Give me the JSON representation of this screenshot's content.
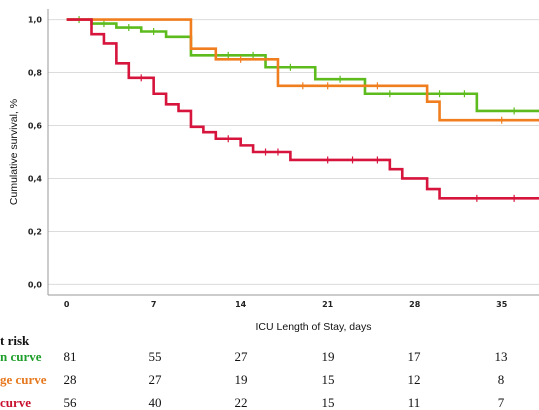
{
  "chart_data": {
    "type": "line",
    "xlabel": "ICU Length of Stay, days",
    "ylabel": "Cumulative survival, %",
    "xlim": [
      -1.5,
      38
    ],
    "ylim": [
      -0.04,
      1.04
    ],
    "x_ticks": [
      "0",
      "7",
      "14",
      "21",
      "28",
      "35"
    ],
    "y_ticks": [
      "0,0",
      "0,2",
      "0,4",
      "0,6",
      "0,8",
      "1,0"
    ],
    "grid": true,
    "series": [
      {
        "color": "#5dbb1e",
        "steps": [
          [
            0,
            1.0
          ],
          [
            2,
            0.985
          ],
          [
            4,
            0.97
          ],
          [
            6,
            0.955
          ],
          [
            8,
            0.935
          ],
          [
            10,
            0.865
          ],
          [
            16,
            0.82
          ],
          [
            20,
            0.775
          ],
          [
            24,
            0.72
          ],
          [
            33,
            0.655
          ],
          [
            38,
            0.655
          ]
        ],
        "censored": [
          [
            1,
            1.0
          ],
          [
            3,
            0.985
          ],
          [
            5,
            0.97
          ],
          [
            7,
            0.955
          ],
          [
            12,
            0.865
          ],
          [
            13,
            0.865
          ],
          [
            15,
            0.865
          ],
          [
            18,
            0.82
          ],
          [
            22,
            0.775
          ],
          [
            26,
            0.72
          ],
          [
            30,
            0.72
          ],
          [
            32,
            0.72
          ],
          [
            36,
            0.655
          ]
        ]
      },
      {
        "color": "#f07e1f",
        "steps": [
          [
            0,
            1.0
          ],
          [
            10,
            0.89
          ],
          [
            12,
            0.85
          ],
          [
            17,
            0.75
          ],
          [
            29,
            0.69
          ],
          [
            30,
            0.62
          ],
          [
            38,
            0.62
          ]
        ],
        "censored": [
          [
            14,
            0.85
          ],
          [
            19,
            0.75
          ],
          [
            21,
            0.75
          ],
          [
            25,
            0.75
          ],
          [
            35,
            0.62
          ]
        ]
      },
      {
        "color": "#d6143c",
        "steps": [
          [
            0,
            1.0
          ],
          [
            2,
            0.945
          ],
          [
            3,
            0.91
          ],
          [
            4,
            0.835
          ],
          [
            5,
            0.78
          ],
          [
            7,
            0.72
          ],
          [
            8,
            0.68
          ],
          [
            9,
            0.655
          ],
          [
            10,
            0.595
          ],
          [
            11,
            0.575
          ],
          [
            12,
            0.55
          ],
          [
            14,
            0.525
          ],
          [
            15,
            0.5
          ],
          [
            18,
            0.47
          ],
          [
            26,
            0.435
          ],
          [
            27,
            0.4
          ],
          [
            29,
            0.36
          ],
          [
            30,
            0.325
          ],
          [
            38,
            0.325
          ]
        ],
        "censored": [
          [
            6,
            0.78
          ],
          [
            13,
            0.55
          ],
          [
            16,
            0.5
          ],
          [
            17,
            0.5
          ],
          [
            21,
            0.47
          ],
          [
            23,
            0.47
          ],
          [
            25,
            0.47
          ],
          [
            33,
            0.325
          ],
          [
            36,
            0.325
          ]
        ]
      }
    ]
  },
  "risk_table": {
    "heading": "t risk",
    "rows": [
      {
        "label": "n curve",
        "color": "#1e9e2a",
        "values": [
          "81",
          "55",
          "27",
          "19",
          "17",
          "13"
        ]
      },
      {
        "label": "ge curve",
        "color": "#e6781e",
        "values": [
          "28",
          "27",
          "19",
          "15",
          "12",
          "8"
        ]
      },
      {
        "label": "curve",
        "color": "#c8102e",
        "values": [
          "56",
          "40",
          "22",
          "15",
          "11",
          "7"
        ]
      }
    ]
  }
}
